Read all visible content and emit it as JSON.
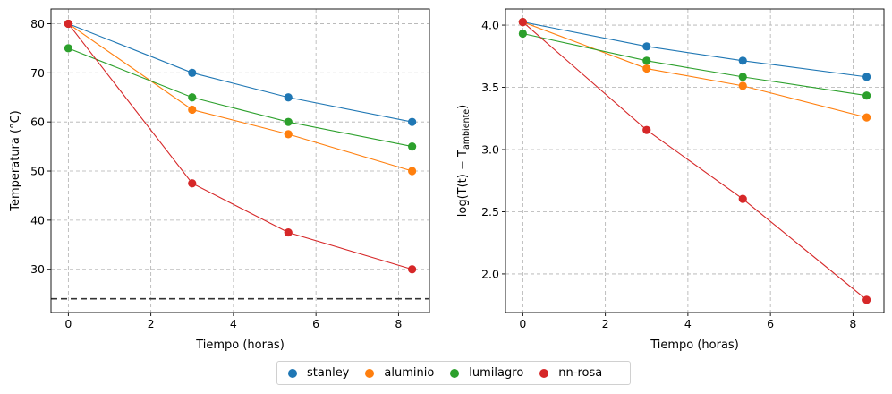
{
  "chart_data": [
    {
      "type": "line",
      "xlabel": "Tiempo (horas)",
      "ylabel": "Temperatura (°C)",
      "xlim": [
        -0.42,
        8.75
      ],
      "ylim": [
        21.2,
        83.0
      ],
      "xticks": [
        0,
        2,
        4,
        6,
        8
      ],
      "yticks": [
        30,
        40,
        50,
        60,
        70,
        80
      ],
      "grid": true,
      "reference_line": {
        "y": 24,
        "style": "dashed",
        "color": "#333333"
      },
      "x": [
        0,
        3,
        5.33,
        8.33
      ],
      "series": [
        {
          "name": "stanley",
          "values": [
            80,
            70,
            65,
            60
          ]
        },
        {
          "name": "aluminio",
          "values": [
            80,
            62.5,
            57.5,
            50
          ]
        },
        {
          "name": "lumilagro",
          "values": [
            75,
            65,
            60,
            55
          ]
        },
        {
          "name": "nn-rosa",
          "values": [
            80,
            47.5,
            37.5,
            30
          ]
        }
      ]
    },
    {
      "type": "line",
      "xlabel": "Tiempo (horas)",
      "ylabel": "log(T(t) − T",
      "ylabel_sub": "ambiente",
      "ylabel_end": ")",
      "xlim": [
        -0.42,
        8.75
      ],
      "ylim": [
        1.69,
        4.13
      ],
      "xticks": [
        0,
        2,
        4,
        6,
        8
      ],
      "yticks": [
        2.0,
        2.5,
        3.0,
        3.5,
        4.0
      ],
      "grid": true,
      "x": [
        0,
        3,
        5.33,
        8.33
      ],
      "series": [
        {
          "name": "stanley",
          "values": [
            4.025,
            3.829,
            3.714,
            3.584
          ]
        },
        {
          "name": "aluminio",
          "values": [
            4.025,
            3.651,
            3.512,
            3.258
          ]
        },
        {
          "name": "lumilagro",
          "values": [
            3.932,
            3.714,
            3.584,
            3.434
          ]
        },
        {
          "name": "nn-rosa",
          "values": [
            4.025,
            3.157,
            2.603,
            1.792
          ]
        }
      ]
    }
  ],
  "colors": {
    "stanley": "#1f77b4",
    "aluminio": "#ff7f0e",
    "lumilagro": "#2ca02c",
    "nn-rosa": "#d62728",
    "grid": "#b0b0b0"
  },
  "legend": {
    "placement": "bottom-center",
    "items": [
      {
        "label": "stanley",
        "color": "#1f77b4"
      },
      {
        "label": "aluminio",
        "color": "#ff7f0e"
      },
      {
        "label": "lumilagro",
        "color": "#2ca02c"
      },
      {
        "label": "nn-rosa",
        "color": "#d62728"
      }
    ]
  }
}
